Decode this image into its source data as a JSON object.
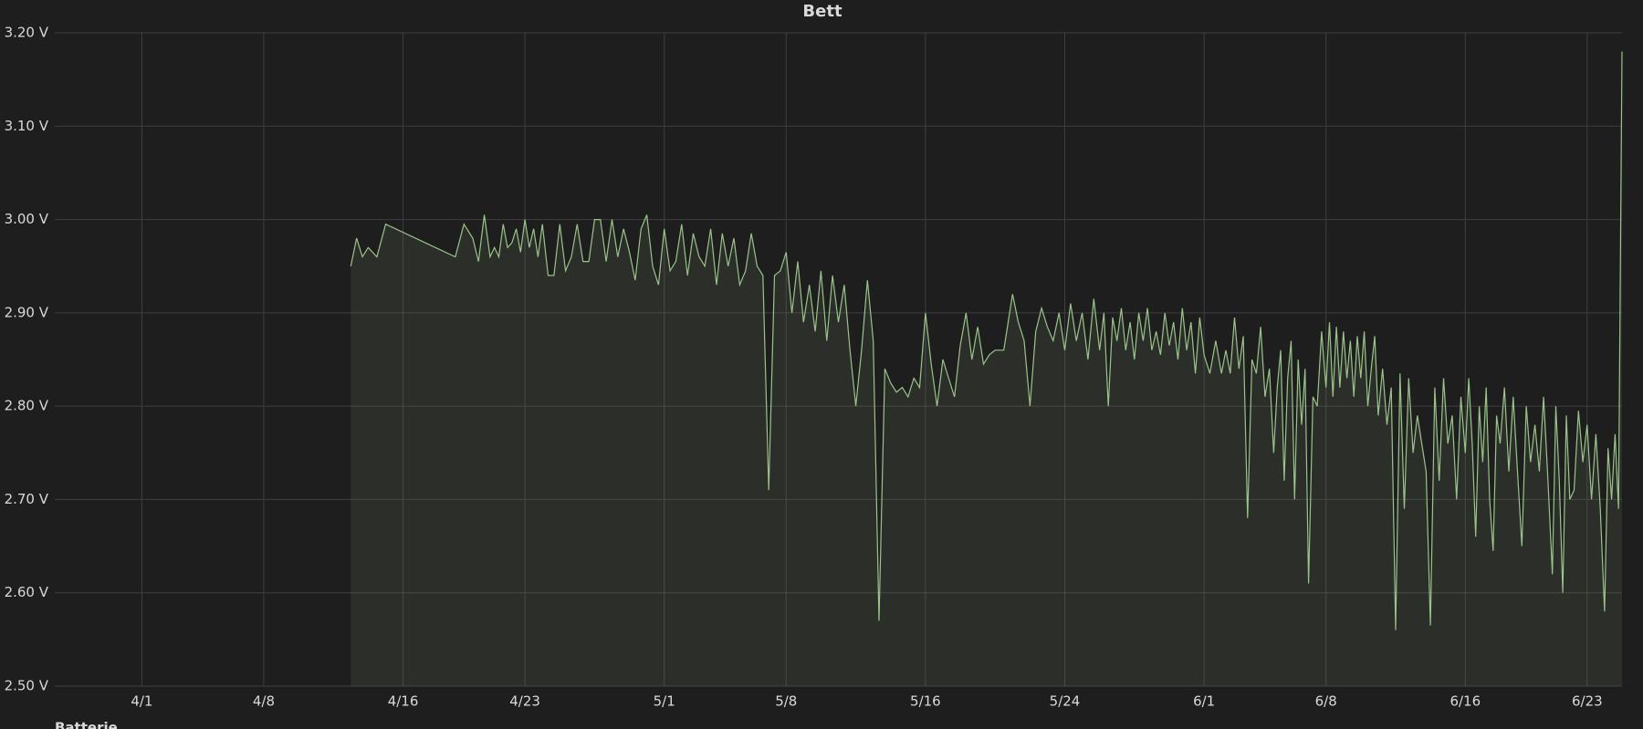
{
  "chart_data": {
    "type": "area",
    "title": "Bett",
    "x": [
      "4/13",
      "4/13",
      "4/13",
      "4/14",
      "4/14",
      "4/15",
      "4/19",
      "4/19",
      "4/20",
      "4/20",
      "4/20",
      "4/21",
      "4/21",
      "4/21",
      "4/21",
      "4/22",
      "4/22",
      "4/22",
      "4/22",
      "4/23",
      "4/23",
      "4/23",
      "4/23",
      "4/24",
      "4/24",
      "4/24",
      "4/25",
      "4/25",
      "4/25",
      "4/26",
      "4/26",
      "4/26",
      "4/27",
      "4/27",
      "4/27",
      "4/28",
      "4/28",
      "4/28",
      "4/29",
      "4/29",
      "4/29",
      "4/30",
      "4/30",
      "4/30",
      "5/1",
      "5/1",
      "5/1",
      "5/2",
      "5/2",
      "5/2",
      "5/3",
      "5/3",
      "5/3",
      "5/4",
      "5/4",
      "5/4",
      "5/5",
      "5/5",
      "5/5",
      "5/6",
      "5/6",
      "5/6",
      "5/7",
      "5/7",
      "5/7",
      "5/8",
      "5/8",
      "5/8",
      "5/9",
      "5/9",
      "5/9",
      "5/10",
      "5/10",
      "5/10",
      "5/11",
      "5/11",
      "5/11",
      "5/12",
      "5/12",
      "5/12",
      "5/13",
      "5/13",
      "5/13",
      "5/14",
      "5/14",
      "5/14",
      "5/15",
      "5/15",
      "5/15",
      "5/16",
      "5/16",
      "5/16",
      "5/17",
      "5/17",
      "5/17",
      "5/18",
      "5/18",
      "5/18",
      "5/19",
      "5/19",
      "5/19",
      "5/20",
      "5/20",
      "5/21",
      "5/21",
      "5/21",
      "5/22",
      "5/22",
      "5/22",
      "5/23",
      "5/23",
      "5/23",
      "5/24",
      "5/24",
      "5/24",
      "5/25",
      "5/25",
      "5/25",
      "5/26",
      "5/26",
      "5/26",
      "5/26",
      "5/27",
      "5/27",
      "5/27",
      "5/27",
      "5/28",
      "5/28",
      "5/28",
      "5/28",
      "5/29",
      "5/29",
      "5/29",
      "5/29",
      "5/30",
      "5/30",
      "5/30",
      "5/30",
      "5/31",
      "5/31",
      "5/31",
      "5/31",
      "6/1",
      "6/1",
      "6/1",
      "6/2",
      "6/2",
      "6/2",
      "6/2",
      "6/3",
      "6/3",
      "6/3",
      "6/3",
      "6/4",
      "6/4",
      "6/4",
      "6/4",
      "6/5",
      "6/5",
      "6/5",
      "6/5",
      "6/5",
      "6/6",
      "6/6",
      "6/6",
      "6/6",
      "6/6",
      "6/7",
      "6/7",
      "6/7",
      "6/7",
      "6/8",
      "6/8",
      "6/8",
      "6/8",
      "6/8",
      "6/9",
      "6/9",
      "6/9",
      "6/9",
      "6/9",
      "6/10",
      "6/10",
      "6/10",
      "6/10",
      "6/10",
      "6/11",
      "6/11",
      "6/11",
      "6/11",
      "6/12",
      "6/12",
      "6/12",
      "6/12",
      "6/13",
      "6/13",
      "6/13",
      "6/13",
      "6/14",
      "6/14",
      "6/14",
      "6/14",
      "6/15",
      "6/15",
      "6/15",
      "6/15",
      "6/16",
      "6/16",
      "6/16",
      "6/16",
      "6/16",
      "6/17",
      "6/17",
      "6/17",
      "6/17",
      "6/17",
      "6/18",
      "6/18",
      "6/18",
      "6/18",
      "6/19",
      "6/19",
      "6/19",
      "6/19",
      "6/20",
      "6/20",
      "6/20",
      "6/20",
      "6/21",
      "6/21",
      "6/21",
      "6/21",
      "6/21",
      "6/22",
      "6/22",
      "6/22",
      "6/22",
      "6/23",
      "6/23",
      "6/23",
      "6/23",
      "6/24",
      "6/24",
      "6/24",
      "6/24",
      "6/24",
      "6/25"
    ],
    "series": [
      {
        "name": "Batterie",
        "color": "#9ac48a",
        "values": [
          2.95,
          2.98,
          2.96,
          2.97,
          2.96,
          2.995,
          2.96,
          2.995,
          2.98,
          2.955,
          3.005,
          2.96,
          2.97,
          2.96,
          2.995,
          2.97,
          2.975,
          2.99,
          2.965,
          3.0,
          2.97,
          2.99,
          2.96,
          2.995,
          2.94,
          2.94,
          2.995,
          2.945,
          2.96,
          2.995,
          2.955,
          2.955,
          3.0,
          3.0,
          2.955,
          3.0,
          2.96,
          2.99,
          2.965,
          2.935,
          2.99,
          3.005,
          2.95,
          2.93,
          2.99,
          2.945,
          2.955,
          2.995,
          2.94,
          2.985,
          2.96,
          2.95,
          2.99,
          2.93,
          2.985,
          2.95,
          2.98,
          2.93,
          2.945,
          2.985,
          2.95,
          2.94,
          2.71,
          2.94,
          2.945,
          2.965,
          2.9,
          2.955,
          2.89,
          2.93,
          2.88,
          2.945,
          2.87,
          2.94,
          2.89,
          2.93,
          2.86,
          2.8,
          2.86,
          2.935,
          2.87,
          2.57,
          2.84,
          2.825,
          2.815,
          2.82,
          2.81,
          2.83,
          2.82,
          2.9,
          2.845,
          2.8,
          2.85,
          2.83,
          2.81,
          2.865,
          2.9,
          2.85,
          2.885,
          2.845,
          2.855,
          2.86,
          2.86,
          2.92,
          2.89,
          2.87,
          2.8,
          2.88,
          2.905,
          2.885,
          2.87,
          2.9,
          2.86,
          2.91,
          2.87,
          2.9,
          2.85,
          2.915,
          2.86,
          2.9,
          2.8,
          2.895,
          2.87,
          2.905,
          2.86,
          2.89,
          2.85,
          2.9,
          2.87,
          2.905,
          2.86,
          2.88,
          2.855,
          2.9,
          2.865,
          2.89,
          2.85,
          2.905,
          2.86,
          2.89,
          2.835,
          2.895,
          2.855,
          2.835,
          2.87,
          2.835,
          2.86,
          2.835,
          2.895,
          2.84,
          2.875,
          2.68,
          2.85,
          2.835,
          2.885,
          2.81,
          2.84,
          2.75,
          2.82,
          2.86,
          2.72,
          2.83,
          2.87,
          2.7,
          2.85,
          2.78,
          2.84,
          2.61,
          2.81,
          2.8,
          2.88,
          2.82,
          2.89,
          2.81,
          2.885,
          2.82,
          2.88,
          2.83,
          2.87,
          2.81,
          2.875,
          2.83,
          2.88,
          2.8,
          2.84,
          2.875,
          2.79,
          2.84,
          2.78,
          2.82,
          2.56,
          2.835,
          2.69,
          2.83,
          2.75,
          2.79,
          2.76,
          2.73,
          2.565,
          2.82,
          2.72,
          2.83,
          2.76,
          2.79,
          2.7,
          2.81,
          2.75,
          2.83,
          2.76,
          2.66,
          2.8,
          2.74,
          2.82,
          2.7,
          2.645,
          2.79,
          2.76,
          2.82,
          2.73,
          2.81,
          2.73,
          2.65,
          2.8,
          2.74,
          2.78,
          2.73,
          2.81,
          2.72,
          2.62,
          2.8,
          2.72,
          2.6,
          2.79,
          2.7,
          2.71,
          2.795,
          2.74,
          2.78,
          2.7,
          2.77,
          2.69,
          2.58,
          2.755,
          2.7,
          2.77,
          2.69,
          3.18
        ]
      }
    ],
    "xlim": [
      "3/27",
      "6/25"
    ],
    "xticks": [
      "4/1",
      "4/8",
      "4/16",
      "4/23",
      "5/1",
      "5/8",
      "5/16",
      "5/24",
      "6/1",
      "6/8",
      "6/16",
      "6/23"
    ],
    "ylim": [
      2.5,
      3.2
    ],
    "yticks": [
      {
        "value": 2.5,
        "label": "2.50 V"
      },
      {
        "value": 2.6,
        "label": "2.60 V"
      },
      {
        "value": 2.7,
        "label": "2.70 V"
      },
      {
        "value": 2.8,
        "label": "2.80 V"
      },
      {
        "value": 2.9,
        "label": "2.90 V"
      },
      {
        "value": 3.0,
        "label": "3.00 V"
      },
      {
        "value": 3.1,
        "label": "3.10 V"
      },
      {
        "value": 3.2,
        "label": "3.20 V"
      }
    ],
    "grid": true
  }
}
